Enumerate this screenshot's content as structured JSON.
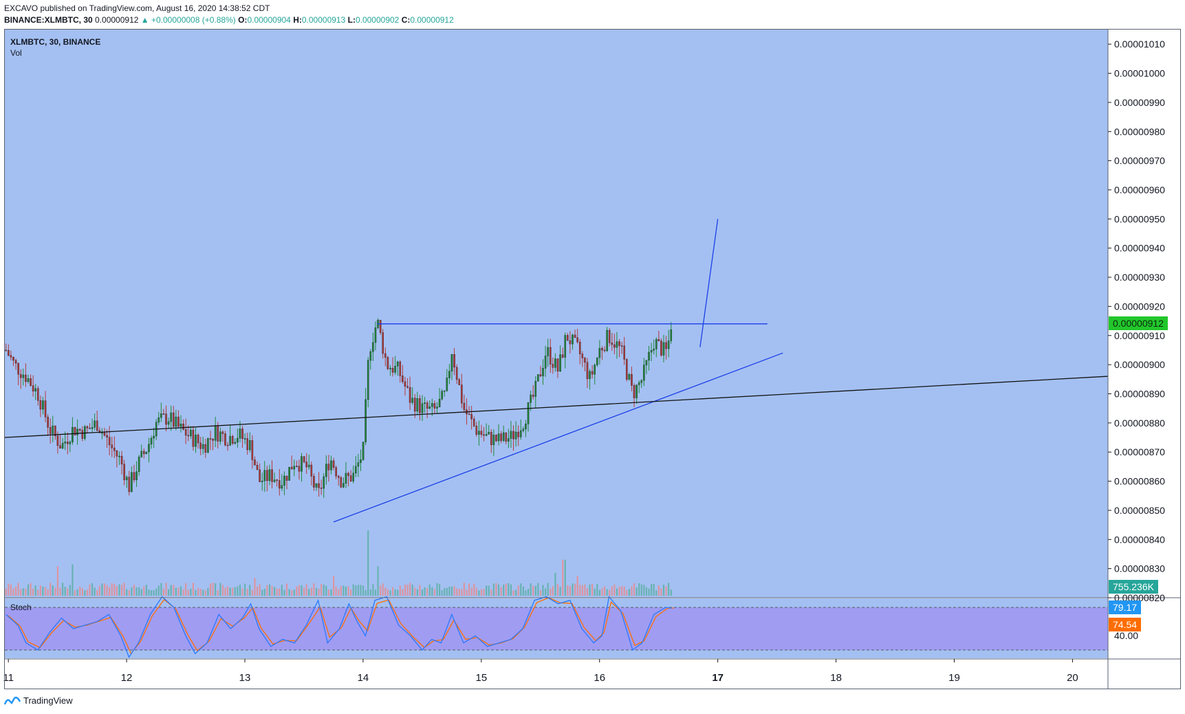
{
  "header": {
    "line1": "EXCAVO published on TradingView.com, August 16, 2020 14:38:52 CDT",
    "symbol": "BINANCE:XLMBTC, 30",
    "last": "0.00000912",
    "change": "▲ +0.00000008 (+0.88%)",
    "o_label": "O:",
    "o_value": "0.00000904",
    "h_label": "H:",
    "h_value": "0.00000913",
    "l_label": "L:",
    "l_value": "0.00000902",
    "c_label": "C:",
    "c_value": "0.00000912"
  },
  "legend": {
    "symbol": "XLMBTC, 30, BINANCE",
    "vol": "Vol",
    "stoch": "Stoch"
  },
  "colors": {
    "background": "#a4c0f2",
    "stoch_band": "#a09cf2",
    "up_candle": "#1e8a3a",
    "down_candle": "#b53a3a",
    "up_volume": "#5fb0a8",
    "down_volume": "#e38f96",
    "trendline_blue": "#1a3ee8",
    "trendline_black": "#111111",
    "stoch_k": "#2979ff",
    "stoch_d": "#ff6d00",
    "price_tag": "#22c72c",
    "volume_tag": "#26a69a",
    "stoch_k_tag": "#2196f3",
    "stoch_d_tag": "#ff6d00"
  },
  "tags": {
    "price": "0.00000912",
    "volume": "755.236K",
    "stoch_k": "79.17",
    "stoch_d": "74.54"
  },
  "footer": {
    "brand": "TradingView",
    "icon": "tradingview-logo-icon"
  },
  "chart_data": {
    "type": "candlestick",
    "title": "XLMBTC, 30, BINANCE",
    "interval": "30",
    "ylim": [
      8.2e-06,
      1.015e-05
    ],
    "y_ticks": [
      "0.00000820",
      "0.00000830",
      "0.00000840",
      "0.00000850",
      "0.00000860",
      "0.00000870",
      "0.00000880",
      "0.00000890",
      "0.00000900",
      "0.00000910",
      "0.00000920",
      "0.00000930",
      "0.00000940",
      "0.00000950",
      "0.00000960",
      "0.00000970",
      "0.00000980",
      "0.00000990",
      "0.00001000",
      "0.00001010"
    ],
    "x_ticks": [
      "11",
      "12",
      "13",
      "14",
      "15",
      "16",
      "17",
      "18",
      "19",
      "20"
    ],
    "x_range_days": [
      10.97,
      20.3
    ],
    "last_price": 9.12e-06,
    "price_path": [
      [
        10.98,
        9.05e-06
      ],
      [
        11.05,
        9e-06
      ],
      [
        11.15,
        8.96e-06
      ],
      [
        11.25,
        8.9e-06
      ],
      [
        11.35,
        8.78e-06
      ],
      [
        11.45,
        8.72e-06
      ],
      [
        11.55,
        8.78e-06
      ],
      [
        11.65,
        8.77e-06
      ],
      [
        11.75,
        8.8e-06
      ],
      [
        11.85,
        8.73e-06
      ],
      [
        11.95,
        8.67e-06
      ],
      [
        12.02,
        8.58e-06
      ],
      [
        12.1,
        8.66e-06
      ],
      [
        12.18,
        8.72e-06
      ],
      [
        12.25,
        8.8e-06
      ],
      [
        12.35,
        8.82e-06
      ],
      [
        12.45,
        8.78e-06
      ],
      [
        12.55,
        8.75e-06
      ],
      [
        12.65,
        8.72e-06
      ],
      [
        12.75,
        8.77e-06
      ],
      [
        12.85,
        8.75e-06
      ],
      [
        12.95,
        8.76e-06
      ],
      [
        13.05,
        8.72e-06
      ],
      [
        13.12,
        8.6e-06
      ],
      [
        13.22,
        8.62e-06
      ],
      [
        13.32,
        8.6e-06
      ],
      [
        13.42,
        8.67e-06
      ],
      [
        13.52,
        8.65e-06
      ],
      [
        13.62,
        8.55e-06
      ],
      [
        13.72,
        8.68e-06
      ],
      [
        13.82,
        8.6e-06
      ],
      [
        13.92,
        8.62e-06
      ],
      [
        14.0,
        8.7e-06
      ],
      [
        14.05,
        9.05e-06
      ],
      [
        14.12,
        9.15e-06
      ],
      [
        14.2,
        9e-06
      ],
      [
        14.3,
        8.98e-06
      ],
      [
        14.4,
        8.88e-06
      ],
      [
        14.5,
        8.85e-06
      ],
      [
        14.6,
        8.84e-06
      ],
      [
        14.7,
        8.9e-06
      ],
      [
        14.75,
        9.05e-06
      ],
      [
        14.85,
        8.85e-06
      ],
      [
        14.95,
        8.78e-06
      ],
      [
        15.05,
        8.75e-06
      ],
      [
        15.15,
        8.74e-06
      ],
      [
        15.25,
        8.75e-06
      ],
      [
        15.35,
        8.8e-06
      ],
      [
        15.45,
        8.9e-06
      ],
      [
        15.55,
        9.05e-06
      ],
      [
        15.65,
        8.98e-06
      ],
      [
        15.72,
        9.1e-06
      ],
      [
        15.82,
        9.05e-06
      ],
      [
        15.92,
        8.95e-06
      ],
      [
        16.0,
        9.05e-06
      ],
      [
        16.08,
        9.1e-06
      ],
      [
        16.18,
        9.05e-06
      ],
      [
        16.28,
        8.9e-06
      ],
      [
        16.36,
        8.95e-06
      ],
      [
        16.46,
        9.08e-06
      ],
      [
        16.56,
        9.04e-06
      ],
      [
        16.61,
        9.12e-06
      ]
    ],
    "drawings": [
      {
        "name": "resistance-line",
        "color": "blue",
        "points": [
          [
            14.12,
            9.14e-06
          ],
          [
            17.42,
            9.14e-06
          ]
        ]
      },
      {
        "name": "rising-trendline",
        "color": "blue",
        "points": [
          [
            13.75,
            8.46e-06
          ],
          [
            17.55,
            9.04e-06
          ]
        ]
      },
      {
        "name": "breakout-projection",
        "color": "blue",
        "points": [
          [
            16.85,
            9.06e-06
          ],
          [
            17.0,
            9.5e-06
          ]
        ]
      },
      {
        "name": "long-trendline",
        "color": "black",
        "points": [
          [
            10.97,
            8.75e-06
          ],
          [
            20.3,
            8.96e-06
          ]
        ]
      }
    ],
    "volume": {
      "last": "755.236K",
      "spikes": [
        [
          11.42,
          0.45
        ],
        [
          11.55,
          0.48
        ],
        [
          13.08,
          0.27
        ],
        [
          13.75,
          0.3
        ],
        [
          14.05,
          1.0
        ],
        [
          14.12,
          0.45
        ],
        [
          15.62,
          0.35
        ],
        [
          15.7,
          0.55
        ],
        [
          15.82,
          0.3
        ],
        [
          16.45,
          0.18
        ]
      ]
    },
    "stochastic": {
      "k": 79.17,
      "d": 74.54,
      "upper_band": 80,
      "lower_band": 20,
      "tick": "40.00",
      "k_path": [
        [
          10.98,
          70
        ],
        [
          11.08,
          55
        ],
        [
          11.15,
          30
        ],
        [
          11.25,
          20
        ],
        [
          11.35,
          45
        ],
        [
          11.45,
          65
        ],
        [
          11.55,
          50
        ],
        [
          11.65,
          55
        ],
        [
          11.75,
          60
        ],
        [
          11.85,
          70
        ],
        [
          11.95,
          40
        ],
        [
          12.02,
          10
        ],
        [
          12.1,
          30
        ],
        [
          12.2,
          70
        ],
        [
          12.3,
          95
        ],
        [
          12.4,
          80
        ],
        [
          12.5,
          40
        ],
        [
          12.58,
          15
        ],
        [
          12.68,
          30
        ],
        [
          12.78,
          70
        ],
        [
          12.88,
          50
        ],
        [
          12.98,
          65
        ],
        [
          13.05,
          85
        ],
        [
          13.12,
          50
        ],
        [
          13.22,
          25
        ],
        [
          13.32,
          35
        ],
        [
          13.42,
          30
        ],
        [
          13.52,
          55
        ],
        [
          13.62,
          90
        ],
        [
          13.7,
          30
        ],
        [
          13.8,
          50
        ],
        [
          13.88,
          85
        ],
        [
          13.95,
          60
        ],
        [
          14.02,
          40
        ],
        [
          14.1,
          90
        ],
        [
          14.2,
          95
        ],
        [
          14.3,
          55
        ],
        [
          14.4,
          40
        ],
        [
          14.5,
          20
        ],
        [
          14.58,
          35
        ],
        [
          14.66,
          30
        ],
        [
          14.75,
          70
        ],
        [
          14.85,
          30
        ],
        [
          14.95,
          40
        ],
        [
          15.05,
          25
        ],
        [
          15.15,
          30
        ],
        [
          15.25,
          35
        ],
        [
          15.35,
          50
        ],
        [
          15.45,
          90
        ],
        [
          15.55,
          95
        ],
        [
          15.65,
          85
        ],
        [
          15.75,
          90
        ],
        [
          15.85,
          50
        ],
        [
          15.95,
          30
        ],
        [
          16.02,
          40
        ],
        [
          16.08,
          95
        ],
        [
          16.18,
          75
        ],
        [
          16.28,
          20
        ],
        [
          16.36,
          30
        ],
        [
          16.46,
          70
        ],
        [
          16.56,
          80
        ],
        [
          16.61,
          79
        ]
      ]
    }
  }
}
